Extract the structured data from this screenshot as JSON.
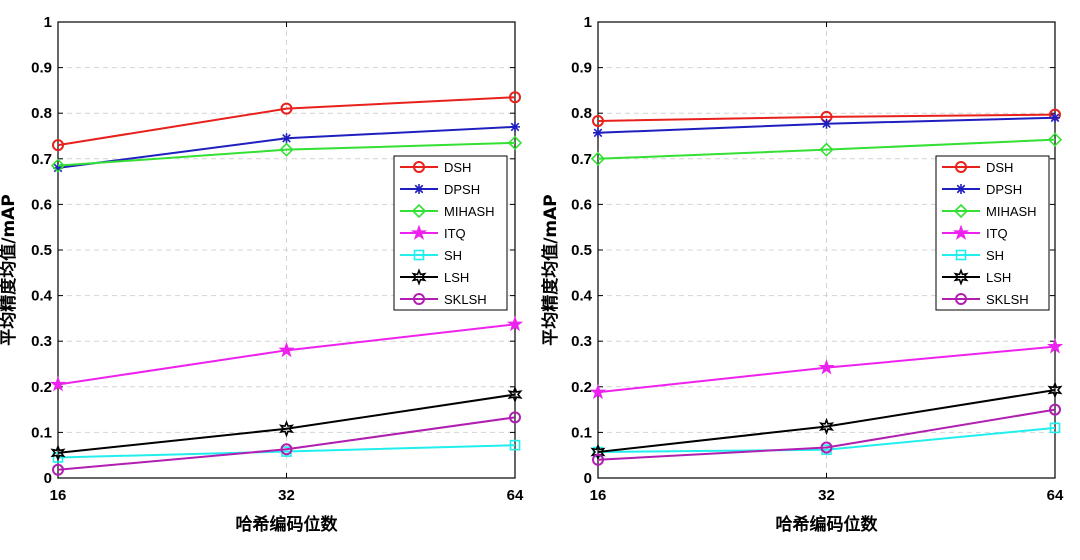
{
  "chart_data": [
    {
      "type": "line",
      "title": "",
      "xlabel": "哈希编码位数",
      "ylabel": "平均精度均值/mAP",
      "x": [
        16,
        32,
        64
      ],
      "x_tick_labels": [
        "16",
        "32",
        "64"
      ],
      "ylim": [
        0,
        1
      ],
      "y_ticks": [
        0,
        0.1,
        0.2,
        0.3,
        0.4,
        0.5,
        0.6,
        0.7,
        0.8,
        0.9,
        1
      ],
      "y_tick_labels": [
        "0",
        "0.1",
        "0.2",
        "0.3",
        "0.4",
        "0.5",
        "0.6",
        "0.7",
        "0.8",
        "0.9",
        "1"
      ],
      "grid": true,
      "legend_position": "right",
      "series": [
        {
          "name": "DSH",
          "color": "#e8211c",
          "marker": "circle",
          "values": [
            0.73,
            0.81,
            0.835
          ]
        },
        {
          "name": "DPSH",
          "color": "#1f1fbf",
          "marker": "asterisk",
          "values": [
            0.68,
            0.745,
            0.77
          ]
        },
        {
          "name": "MIHASH",
          "color": "#33e033",
          "marker": "diamond",
          "values": [
            0.685,
            0.72,
            0.735
          ]
        },
        {
          "name": "ITQ",
          "color": "#ee22ee",
          "marker": "star",
          "values": [
            0.205,
            0.28,
            0.337
          ]
        },
        {
          "name": "SH",
          "color": "#22eeee",
          "marker": "square",
          "values": [
            0.045,
            0.058,
            0.072
          ]
        },
        {
          "name": "LSH",
          "color": "#000000",
          "marker": "hexagram",
          "values": [
            0.055,
            0.108,
            0.183
          ]
        },
        {
          "name": "SKLSH",
          "color": "#b01fb0",
          "marker": "circle",
          "values": [
            0.018,
            0.063,
            0.133
          ]
        }
      ]
    },
    {
      "type": "line",
      "title": "",
      "xlabel": "哈希编码位数",
      "ylabel": "平均精度均值/mAP",
      "x": [
        16,
        32,
        64
      ],
      "x_tick_labels": [
        "16",
        "32",
        "64"
      ],
      "ylim": [
        0,
        1
      ],
      "y_ticks": [
        0,
        0.1,
        0.2,
        0.3,
        0.4,
        0.5,
        0.6,
        0.7,
        0.8,
        0.9,
        1
      ],
      "y_tick_labels": [
        "0",
        "0.1",
        "0.2",
        "0.3",
        "0.4",
        "0.5",
        "0.6",
        "0.7",
        "0.8",
        "0.9",
        "1"
      ],
      "grid": true,
      "legend_position": "right",
      "series": [
        {
          "name": "DSH",
          "color": "#e8211c",
          "marker": "circle",
          "values": [
            0.783,
            0.792,
            0.797
          ]
        },
        {
          "name": "DPSH",
          "color": "#1f1fbf",
          "marker": "asterisk",
          "values": [
            0.757,
            0.777,
            0.79
          ]
        },
        {
          "name": "MIHASH",
          "color": "#33e033",
          "marker": "diamond",
          "values": [
            0.7,
            0.72,
            0.742
          ]
        },
        {
          "name": "ITQ",
          "color": "#ee22ee",
          "marker": "star",
          "values": [
            0.188,
            0.242,
            0.288
          ]
        },
        {
          "name": "SH",
          "color": "#22eeee",
          "marker": "square",
          "values": [
            0.057,
            0.062,
            0.11
          ]
        },
        {
          "name": "LSH",
          "color": "#000000",
          "marker": "hexagram",
          "values": [
            0.057,
            0.113,
            0.193
          ]
        },
        {
          "name": "SKLSH",
          "color": "#b01fb0",
          "marker": "circle",
          "values": [
            0.04,
            0.067,
            0.15
          ]
        }
      ]
    }
  ]
}
